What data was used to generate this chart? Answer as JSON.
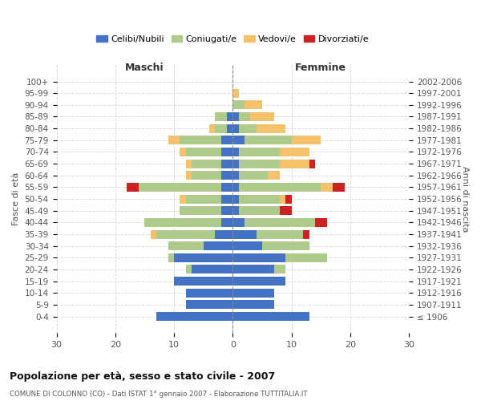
{
  "age_groups": [
    "100+",
    "95-99",
    "90-94",
    "85-89",
    "80-84",
    "75-79",
    "70-74",
    "65-69",
    "60-64",
    "55-59",
    "50-54",
    "45-49",
    "40-44",
    "35-39",
    "30-34",
    "25-29",
    "20-24",
    "15-19",
    "10-14",
    "5-9",
    "0-4"
  ],
  "birth_years": [
    "≤ 1906",
    "1907-1911",
    "1912-1916",
    "1917-1921",
    "1922-1926",
    "1927-1931",
    "1932-1936",
    "1937-1941",
    "1942-1946",
    "1947-1951",
    "1952-1956",
    "1957-1961",
    "1962-1966",
    "1967-1971",
    "1972-1976",
    "1977-1981",
    "1982-1986",
    "1987-1991",
    "1992-1996",
    "1997-2001",
    "2002-2006"
  ],
  "colors": {
    "celibi": "#4472C4",
    "coniugati": "#AECB8C",
    "vedovi": "#F5C26B",
    "divorziati": "#CC2222"
  },
  "males": {
    "celibi": [
      0,
      0,
      0,
      1,
      1,
      2,
      2,
      2,
      2,
      2,
      2,
      2,
      2,
      3,
      5,
      10,
      7,
      10,
      8,
      8,
      13
    ],
    "coniugati": [
      0,
      0,
      0,
      2,
      2,
      7,
      6,
      5,
      5,
      14,
      6,
      7,
      13,
      10,
      6,
      1,
      1,
      0,
      0,
      0,
      0
    ],
    "vedovi": [
      0,
      0,
      0,
      0,
      1,
      2,
      1,
      1,
      1,
      0,
      1,
      0,
      0,
      1,
      0,
      0,
      0,
      0,
      0,
      0,
      0
    ],
    "divorziati": [
      0,
      0,
      0,
      0,
      0,
      0,
      0,
      0,
      0,
      2,
      0,
      0,
      0,
      0,
      0,
      0,
      0,
      0,
      0,
      0,
      0
    ]
  },
  "females": {
    "nubili": [
      0,
      0,
      0,
      1,
      1,
      2,
      1,
      1,
      1,
      1,
      1,
      1,
      2,
      4,
      5,
      9,
      7,
      9,
      7,
      7,
      13
    ],
    "coniugate": [
      0,
      0,
      2,
      2,
      3,
      8,
      7,
      7,
      5,
      14,
      7,
      7,
      12,
      8,
      8,
      7,
      2,
      0,
      0,
      0,
      0
    ],
    "vedove": [
      0,
      1,
      3,
      4,
      5,
      5,
      5,
      5,
      2,
      2,
      1,
      0,
      0,
      0,
      0,
      0,
      0,
      0,
      0,
      0,
      0
    ],
    "divorziate": [
      0,
      0,
      0,
      0,
      0,
      0,
      0,
      1,
      0,
      2,
      1,
      2,
      2,
      1,
      0,
      0,
      0,
      0,
      0,
      0,
      0
    ]
  },
  "xlim": 30,
  "title": "Popolazione per età, sesso e stato civile - 2007",
  "subtitle": "COMUNE DI COLONNO (CO) - Dati ISTAT 1° gennaio 2007 - Elaborazione TUTTITALIA.IT",
  "ylabel_left": "Fasce di età",
  "ylabel_right": "Anni di nascita",
  "xlabel_left": "Maschi",
  "xlabel_right": "Femmine",
  "legend_labels": [
    "Celibi/Nubili",
    "Coniugati/e",
    "Vedovi/e",
    "Divorziati/e"
  ],
  "background_color": "#ffffff",
  "grid_color": "#cccccc"
}
